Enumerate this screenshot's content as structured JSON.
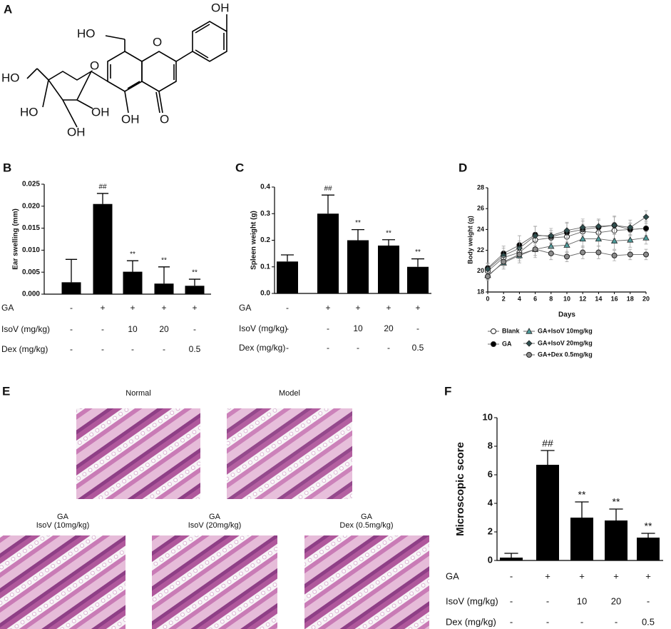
{
  "panels": [
    "A",
    "B",
    "C",
    "D",
    "E",
    "F"
  ],
  "structure": {
    "labels": [
      "OH",
      "HO",
      "O",
      "HO",
      "O",
      "OH",
      "O",
      "HO",
      "OH",
      "OH"
    ]
  },
  "histology": [
    {
      "lines": [
        "Normal"
      ]
    },
    {
      "lines": [
        "Model"
      ]
    },
    {
      "lines": [
        "GA",
        "IsoV (10mg/kg)"
      ]
    },
    {
      "lines": [
        "GA",
        "IsoV (20mg/kg)"
      ]
    },
    {
      "lines": [
        "GA",
        "Dex (0.5mg/kg)"
      ]
    }
  ],
  "chart_data": [
    {
      "type": "bar",
      "y_label": "Ear swelling (mm)",
      "color": "#000000",
      "values": [
        0.0027,
        0.0205,
        0.0051,
        0.0024,
        0.0019
      ],
      "errors": [
        0.0052,
        0.0024,
        0.0025,
        0.0038,
        0.0015
      ],
      "annotations": [
        null,
        "##",
        "**",
        "**",
        "**"
      ],
      "ylim": [
        0,
        0.025
      ],
      "yticks": [
        {
          "value": 0,
          "label": "0.000"
        },
        0.005,
        {
          "value": 0.01,
          "label": "0.010"
        },
        0.015,
        {
          "value": 0.02,
          "label": "0.020"
        },
        0.025
      ],
      "conditions": [
        {
          "label": "GA",
          "values": [
            "-",
            "+",
            "+",
            "+",
            "+"
          ]
        },
        {
          "label": "IsoV (mg/kg)",
          "values": [
            "-",
            "-",
            "10",
            "20",
            "-"
          ]
        },
        {
          "label": "Dex (mg/kg)",
          "values": [
            "-",
            "-",
            "-",
            "-",
            "0.5"
          ]
        }
      ]
    },
    {
      "type": "bar",
      "y_label": "Spleen weight (g)",
      "color": "#000000",
      "values": [
        0.12,
        0.3,
        0.2,
        0.18,
        0.1
      ],
      "errors": [
        0.025,
        0.07,
        0.04,
        0.022,
        0.03
      ],
      "annotations": [
        null,
        "##",
        "**",
        "**",
        "**"
      ],
      "ylim": [
        0,
        0.4
      ],
      "yticks": [
        {
          "value": 0,
          "label": "0.0"
        },
        0.1,
        0.2,
        0.3,
        0.4
      ],
      "conditions": [
        {
          "label": "GA",
          "values": [
            "-",
            "+",
            "+",
            "+",
            "+"
          ]
        },
        {
          "label": "IsoV (mg/kg)",
          "values": [
            "-",
            "-",
            "10",
            "20",
            "-"
          ]
        },
        {
          "label": "Dex (mg/kg)",
          "values": [
            "-",
            "-",
            "-",
            "-",
            "0.5"
          ]
        }
      ]
    },
    {
      "type": "line",
      "x_label": "Days",
      "y_label": "Body weight (g)",
      "x": [
        0,
        2,
        4,
        6,
        8,
        10,
        12,
        14,
        16,
        18,
        20
      ],
      "xlim": [
        0,
        20
      ],
      "xticks": [
        0,
        2,
        4,
        6,
        8,
        10,
        12,
        14,
        16,
        18,
        20
      ],
      "ylim": [
        18,
        28
      ],
      "yticks": [
        18,
        20,
        22,
        24,
        26,
        28
      ],
      "series": [
        {
          "name": "Blank",
          "color": "#ffffff",
          "marker": "circle",
          "values": [
            20.0,
            21.3,
            21.8,
            23.0,
            23.2,
            23.3,
            23.8,
            23.7,
            23.9,
            24.0,
            24.1
          ],
          "errors": [
            0.4,
            0.6,
            0.6,
            0.7,
            0.5,
            0.6,
            0.7,
            0.6,
            0.8,
            0.6,
            0.7
          ]
        },
        {
          "name": "GA",
          "color": "#000000",
          "marker": "circle",
          "values": [
            20.3,
            21.7,
            22.5,
            23.5,
            23.3,
            23.7,
            24.0,
            24.2,
            24.4,
            24.0,
            24.1
          ],
          "errors": [
            0.5,
            0.7,
            0.9,
            0.8,
            0.6,
            0.9,
            0.8,
            0.7,
            0.8,
            0.6,
            0.7
          ]
        },
        {
          "name": "GA+IsoV 10mg/kg",
          "color": "#4e9c9c",
          "marker": "triangle",
          "values": [
            19.6,
            20.8,
            21.5,
            22.1,
            22.4,
            22.5,
            23.1,
            23.1,
            22.9,
            23.0,
            23.2
          ],
          "errors": [
            0.4,
            0.6,
            0.7,
            0.8,
            0.7,
            0.7,
            0.8,
            0.7,
            0.8,
            0.7,
            0.6
          ]
        },
        {
          "name": "GA+IsoV 20mg/kg",
          "color": "#2f4f4f",
          "marker": "diamond",
          "values": [
            20.2,
            21.5,
            22.2,
            23.4,
            23.4,
            23.9,
            24.2,
            24.3,
            24.4,
            24.2,
            25.2
          ],
          "errors": [
            0.5,
            0.7,
            0.7,
            0.9,
            0.7,
            0.8,
            0.8,
            0.7,
            0.9,
            0.7,
            0.6
          ]
        },
        {
          "name": "GA+Dex 0.5mg/kg",
          "color": "#8c8c8c",
          "marker": "circle",
          "values": [
            19.5,
            20.9,
            21.6,
            22.1,
            21.7,
            21.4,
            21.8,
            21.8,
            21.5,
            21.6,
            21.6
          ],
          "errors": [
            0.4,
            0.5,
            0.6,
            0.6,
            0.6,
            0.5,
            0.6,
            0.6,
            0.5,
            0.5,
            0.5
          ]
        }
      ]
    },
    {
      "type": "bar",
      "y_label": "Microscopic score",
      "color": "#000000",
      "values": [
        0.2,
        6.7,
        3.0,
        2.8,
        1.6
      ],
      "errors": [
        0.3,
        1.0,
        1.1,
        0.8,
        0.3
      ],
      "annotations": [
        null,
        "##",
        "**",
        "**",
        "**"
      ],
      "ylim": [
        0,
        10
      ],
      "yticks": [
        0,
        2,
        4,
        6,
        8,
        10
      ],
      "conditions": [
        {
          "label": "GA",
          "values": [
            "-",
            "+",
            "+",
            "+",
            "+"
          ]
        },
        {
          "label": "IsoV (mg/kg)",
          "values": [
            "-",
            "-",
            "10",
            "20",
            "-"
          ]
        },
        {
          "label": "Dex (mg/kg)",
          "values": [
            "-",
            "-",
            "-",
            "-",
            "0.5"
          ]
        }
      ]
    }
  ]
}
